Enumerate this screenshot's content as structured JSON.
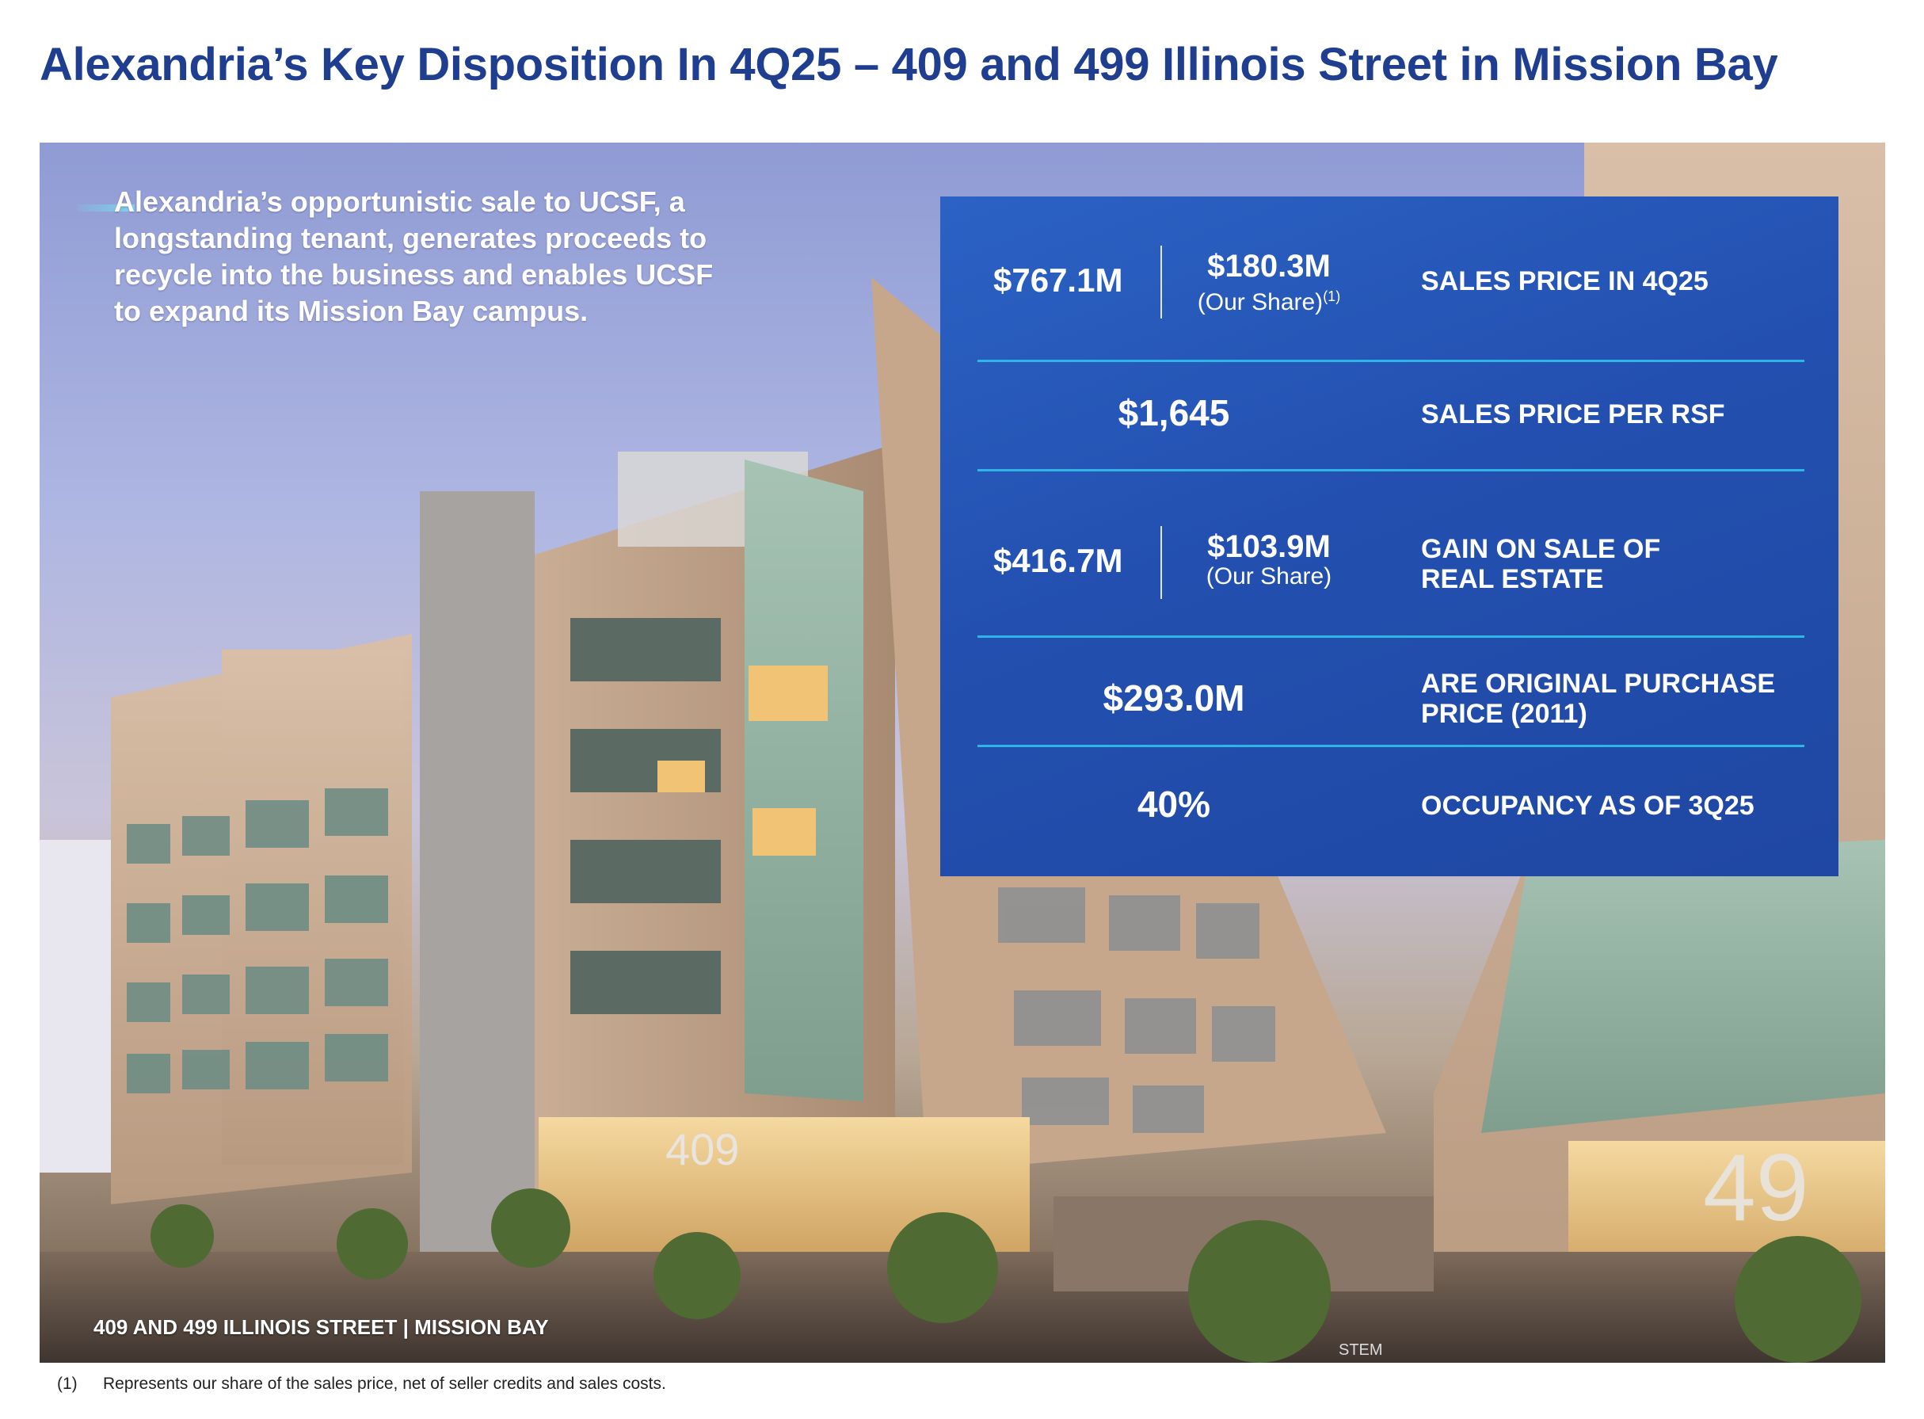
{
  "title": "Alexandria’s Key Disposition In 4Q25 – 409 and 499 Illinois Street in Mission Bay",
  "intro": "Alexandria’s opportunistic sale to UCSF, a longstanding tenant, generates proceeds to recycle into the business and enables UCSF to expand its Mission Bay campus.",
  "photo_caption": "409 AND 499 ILLINOIS STREET | MISSION BAY",
  "building_number_409": "409",
  "building_number_499": "49",
  "sign_text": "STEM",
  "stats": {
    "row1": {
      "total": "$767.1M",
      "share_value": "$180.3M",
      "share_label": "(Our Share)",
      "share_note": "(1)",
      "label": "SALES PRICE IN 4Q25"
    },
    "row2": {
      "value": "$1,645",
      "label": "SALES PRICE PER RSF"
    },
    "row3": {
      "total": "$416.7M",
      "share_value": "$103.9M",
      "share_label": "(Our Share)",
      "label_line1": "GAIN ON SALE OF",
      "label_line2": "REAL ESTATE"
    },
    "row4": {
      "value": "$293.0M",
      "label_line1": "ARE ORIGINAL PURCHASE",
      "label_line2": "PRICE (2011)"
    },
    "row5": {
      "value": "40%",
      "label": "OCCUPANCY AS OF 3Q25"
    }
  },
  "footnote": {
    "number": "(1)",
    "text": "Represents our share of the sales price, net of seller credits and sales costs."
  },
  "colors": {
    "title": "#1f3e8f",
    "panel": "#2350b0",
    "divider": "#2fb4e6"
  }
}
